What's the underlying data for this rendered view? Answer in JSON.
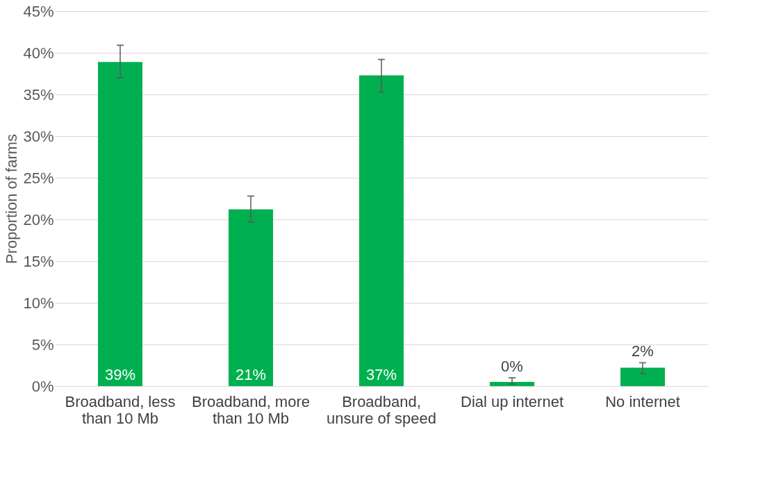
{
  "chart_data": {
    "type": "bar",
    "ylabel": "Proportion of farms",
    "categories": [
      "Broadband, less than 10 Mb",
      "Broadband, more than 10 Mb",
      "Broadband, unsure of speed",
      "Dial up internet",
      "No internet"
    ],
    "series": [
      {
        "color": "#00b050",
        "values": [
          38.9,
          21.2,
          37.3,
          0.5,
          2.2
        ],
        "errors": [
          [
            37.0,
            40.9
          ],
          [
            19.7,
            22.8
          ],
          [
            35.3,
            39.2
          ],
          [
            0.25,
            1.0
          ],
          [
            1.5,
            2.8
          ]
        ],
        "value_labels": [
          "39%",
          "21%",
          "37%",
          "0%",
          "2%"
        ]
      }
    ],
    "ylim": [
      0,
      45
    ],
    "yticks": [
      {
        "value": 0,
        "label": "0%"
      },
      {
        "value": 5,
        "label": "5%"
      },
      {
        "value": 10,
        "label": "10%"
      },
      {
        "value": 15,
        "label": "15%"
      },
      {
        "value": 20,
        "label": "20%"
      },
      {
        "value": 25,
        "label": "25%"
      },
      {
        "value": 30,
        "label": "30%"
      },
      {
        "value": 35,
        "label": "35%"
      },
      {
        "value": 40,
        "label": "40%"
      },
      {
        "value": 45,
        "label": "45%"
      }
    ],
    "grid": "y"
  }
}
